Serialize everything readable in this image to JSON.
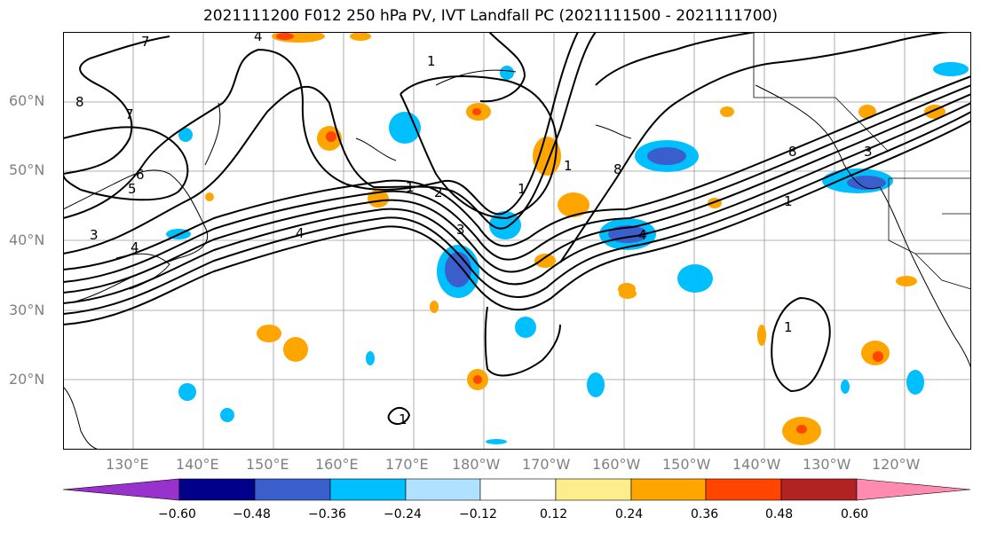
{
  "title": "2021111200 F012 250 hPa PV, IVT Landfall PC (2021111500 - 2021111700)",
  "lat_labels": [
    "60°N",
    "50°N",
    "40°N",
    "30°N",
    "20°N"
  ],
  "lon_labels": [
    "130°E",
    "140°E",
    "150°E",
    "160°E",
    "170°E",
    "180°W",
    "170°W",
    "160°W",
    "150°W",
    "140°W",
    "130°W",
    "120°W"
  ],
  "contour_labels": [
    "7",
    "4",
    "1",
    "8",
    "7",
    "6",
    "5",
    "4",
    "3",
    "1",
    "2",
    "3",
    "4",
    "1",
    "8",
    "1",
    "4",
    "3",
    "8",
    "1",
    "1",
    "1"
  ],
  "colorbar": {
    "ticks": [
      "−0.60",
      "−0.48",
      "−0.36",
      "−0.24",
      "−0.12",
      "0.12",
      "0.24",
      "0.36",
      "0.48",
      "0.60"
    ],
    "colors": [
      "#9932CC",
      "#00008B",
      "#3A5FCD",
      "#00BFFF",
      "#B0E2FF",
      "#FFFFFF",
      "#FFEC8B",
      "#FFA500",
      "#FF4500",
      "#B22222",
      "#FF8CB0"
    ]
  }
}
